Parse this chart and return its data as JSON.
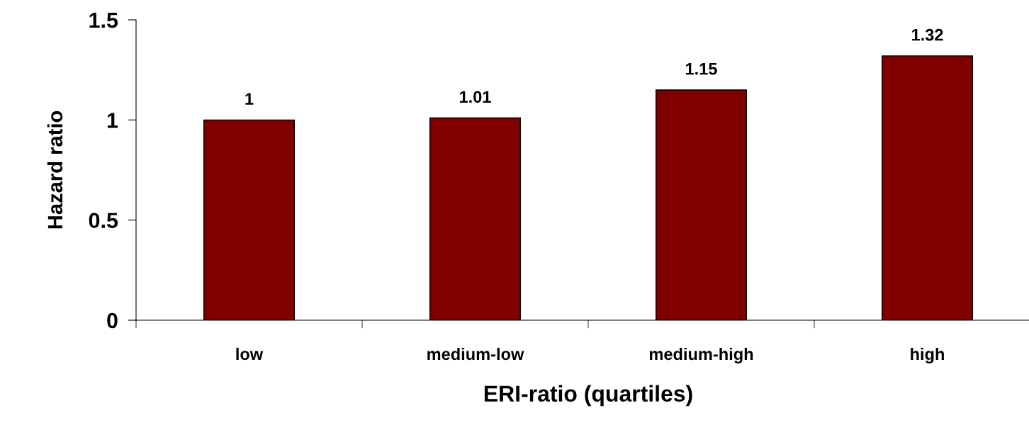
{
  "chart_data": {
    "type": "bar",
    "xlabel": "ERI-ratio (quartiles)",
    "ylabel": "Hazard ratio",
    "categories": [
      "low",
      "medium-low",
      "medium-high",
      "high"
    ],
    "values": [
      1,
      1.01,
      1.15,
      1.32
    ],
    "color": "#800000",
    "ylim": [
      0,
      1.5
    ],
    "yticks": [
      0,
      0.5,
      1,
      1.5
    ],
    "grid": false,
    "data_labels": true
  }
}
